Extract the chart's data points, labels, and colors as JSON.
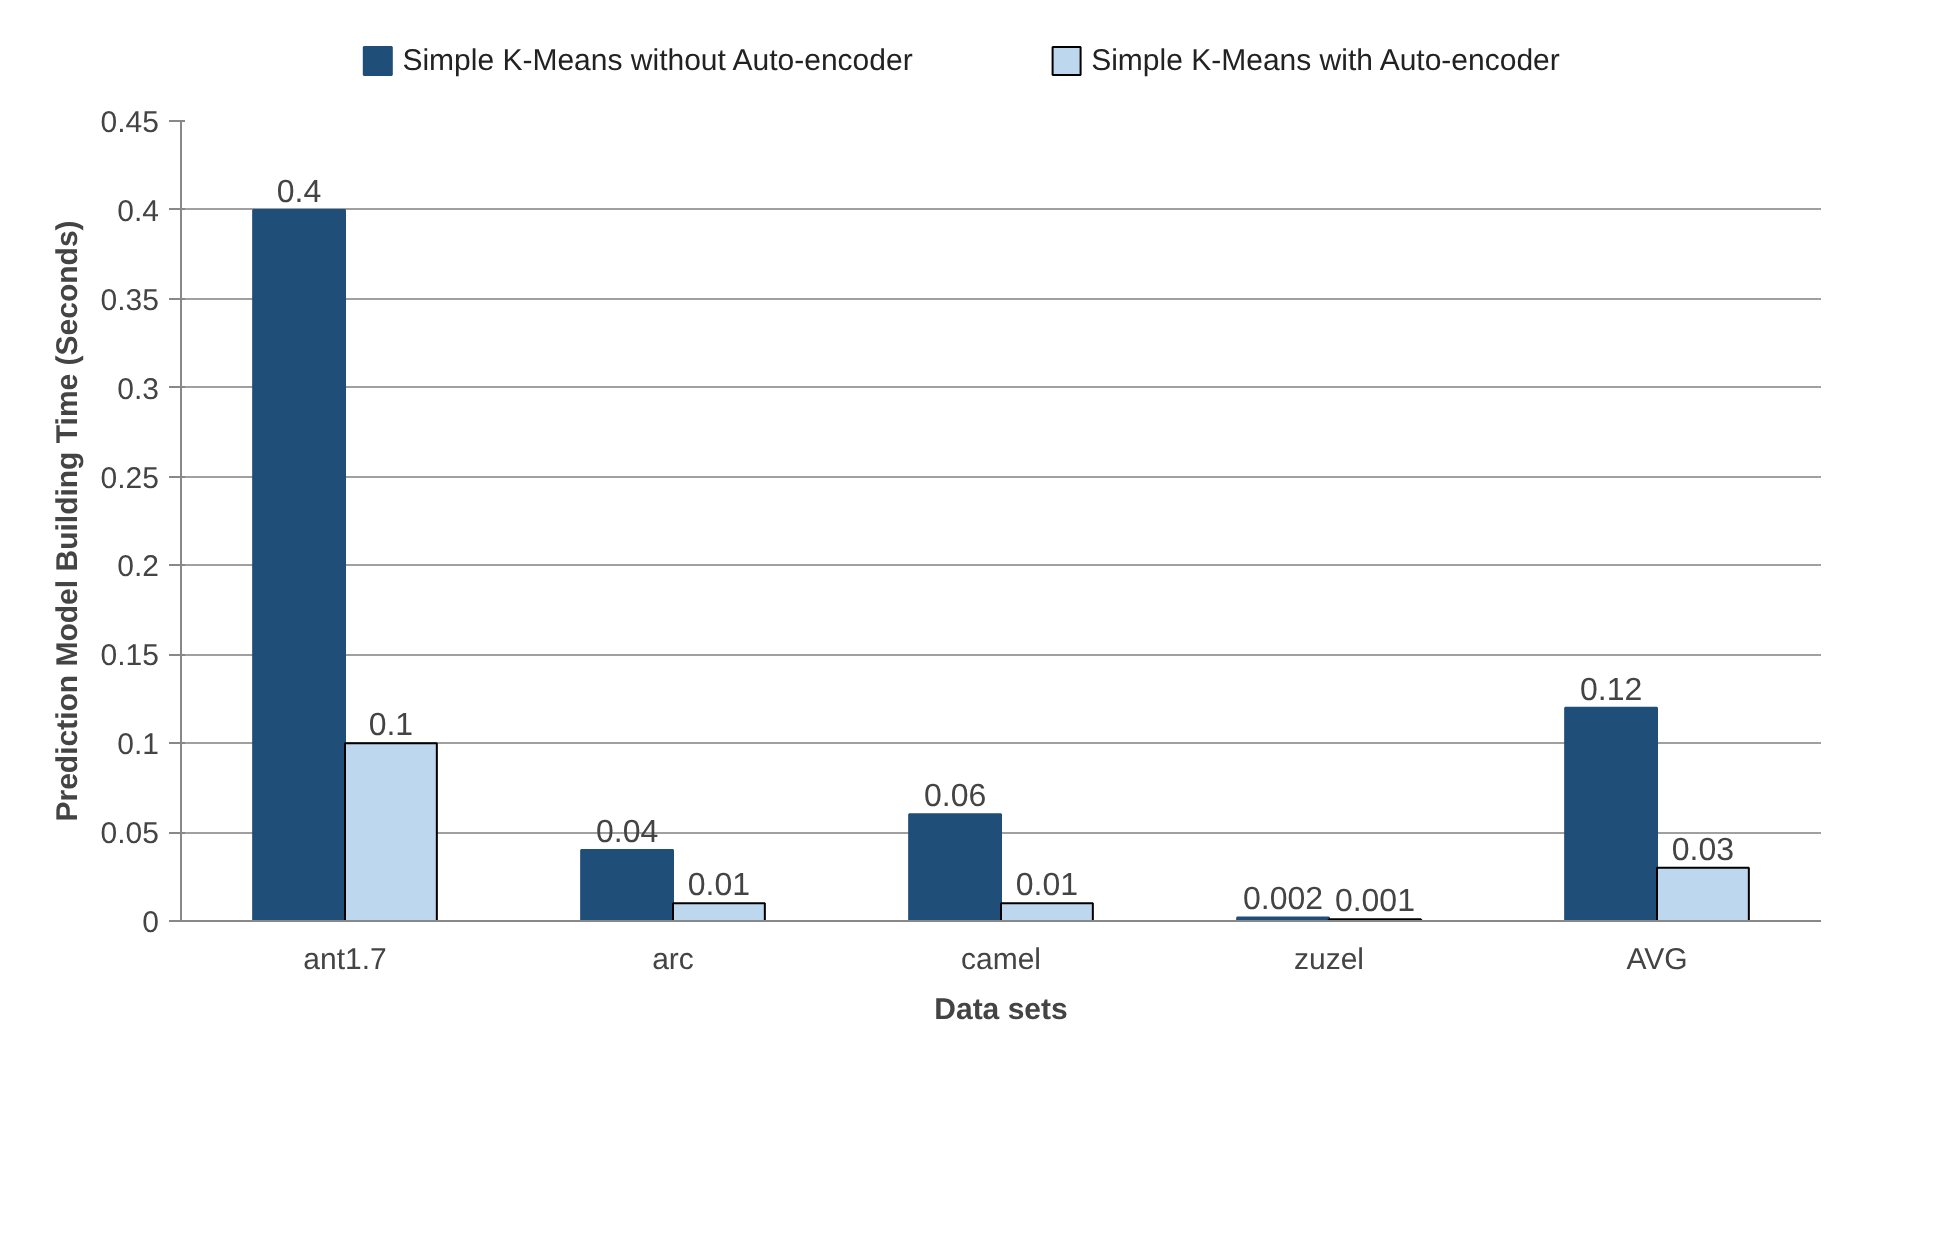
{
  "chart_data": {
    "type": "bar",
    "xlabel": "Data sets",
    "ylabel": "Prediction Model Building Time (Seconds)",
    "categories": [
      "ant1.7",
      "arc",
      "camel",
      "zuzel",
      "AVG"
    ],
    "series": [
      {
        "name": "Simple K-Means without Auto-encoder",
        "color": "#1f4e79",
        "values": [
          0.4,
          0.04,
          0.06,
          0.002,
          0.12
        ]
      },
      {
        "name": "Simple K-Means with Auto-encoder",
        "color": "#bdd7ee",
        "values": [
          0.1,
          0.01,
          0.01,
          0.001,
          0.03
        ]
      }
    ],
    "ylim": [
      0,
      0.45
    ],
    "yticks": [
      0,
      0.05,
      0.1,
      0.15,
      0.2,
      0.25,
      0.3,
      0.35,
      0.4,
      0.45
    ],
    "grid": "y",
    "legend": "top",
    "data_labels": true
  }
}
